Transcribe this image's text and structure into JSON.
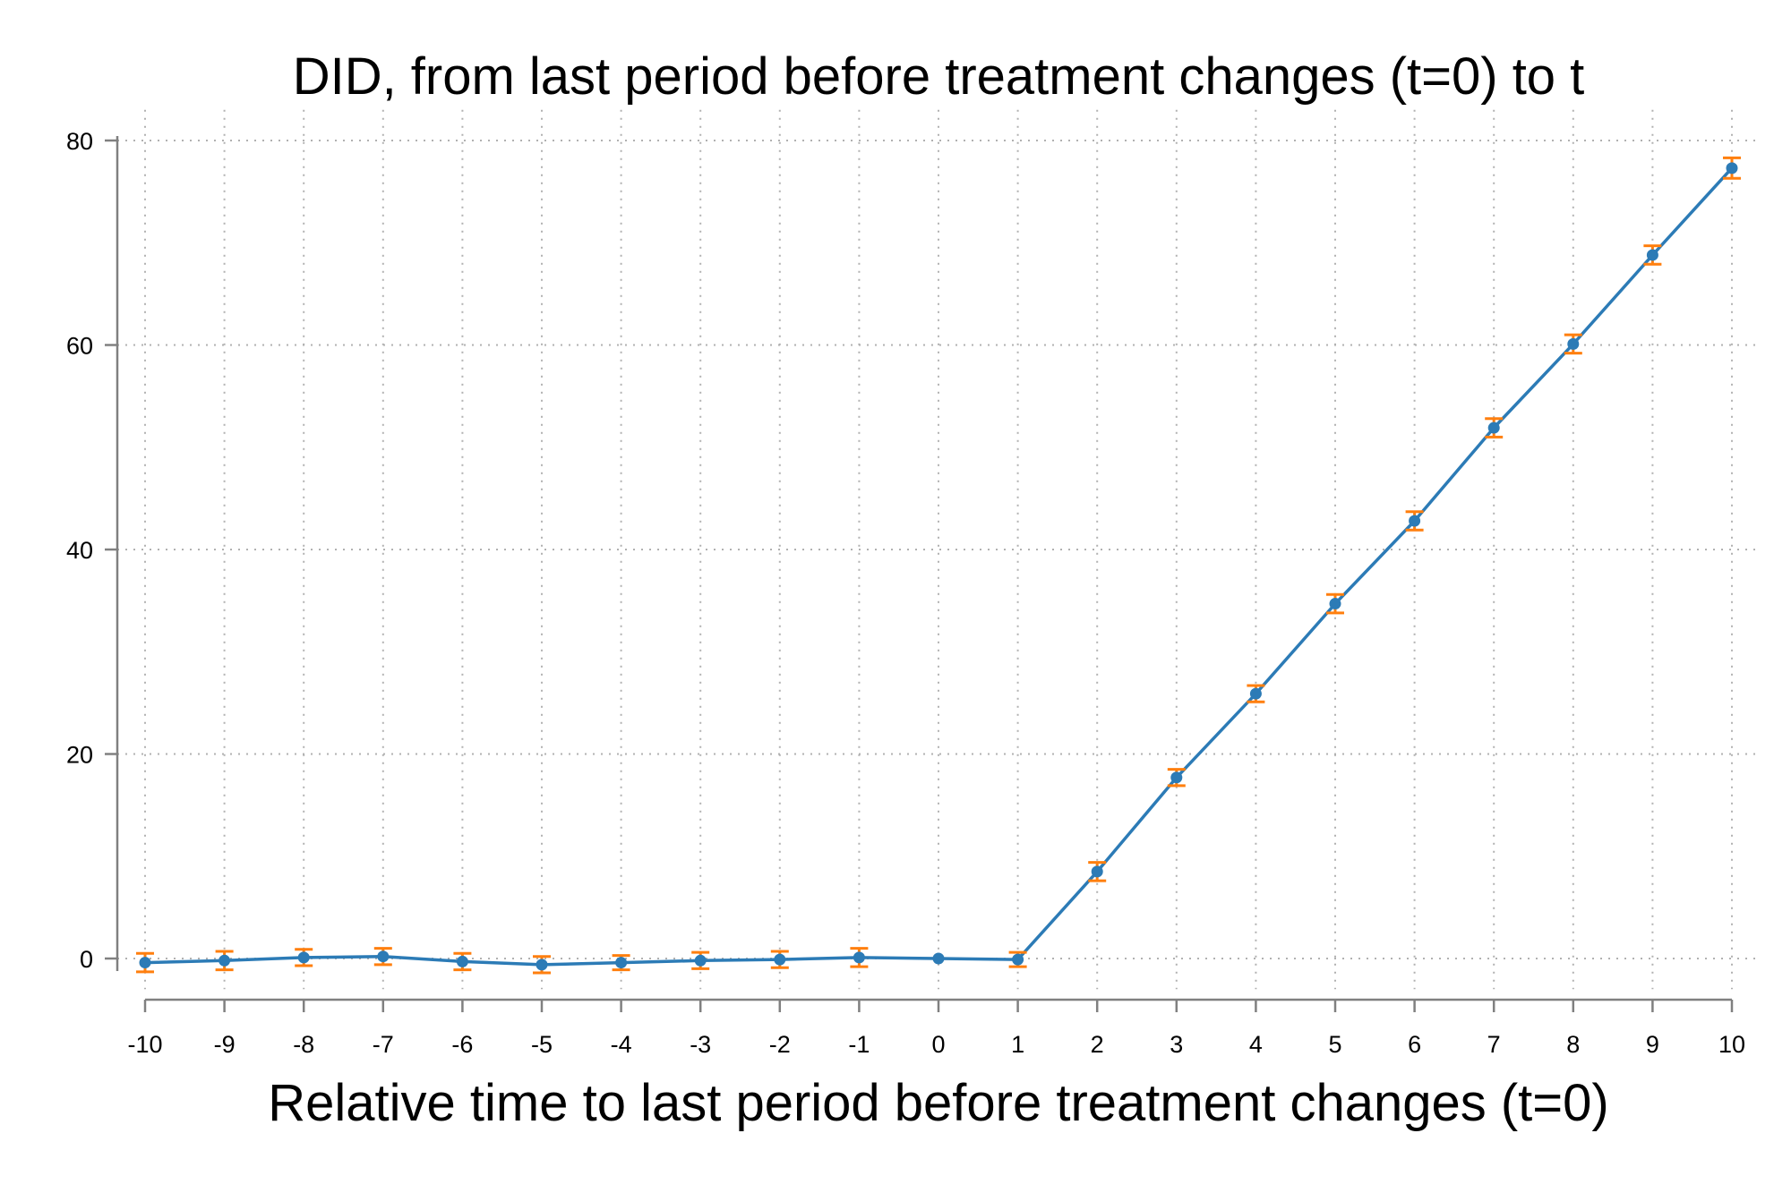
{
  "chart_data": {
    "type": "line",
    "title": "DID, from last period before treatment changes (t=0) to t",
    "xlabel": "Relative time to last period before treatment changes (t=0)",
    "ylabel": "",
    "x": [
      -10,
      -9,
      -8,
      -7,
      -6,
      -5,
      -4,
      -3,
      -2,
      -1,
      0,
      1,
      2,
      3,
      4,
      5,
      6,
      7,
      8,
      9,
      10
    ],
    "x_tick_labels": [
      "-10",
      "-9",
      "-8",
      "-7",
      "-6",
      "-5",
      "-4",
      "-3",
      "-2",
      "-1",
      "0",
      "1",
      "2",
      "3",
      "4",
      "5",
      "6",
      "7",
      "8",
      "9",
      "10"
    ],
    "y_ticks": [
      0,
      20,
      40,
      60,
      80
    ],
    "y_tick_labels": [
      "0",
      "20",
      "40",
      "60",
      "80"
    ],
    "xlim": [
      -10,
      10
    ],
    "ylim": [
      -3,
      83
    ],
    "grid": true,
    "series": [
      {
        "values": [
          -0.4,
          -0.2,
          0.1,
          0.2,
          -0.3,
          -0.6,
          -0.4,
          -0.2,
          -0.1,
          0.1,
          0.0,
          -0.1,
          8.5,
          17.7,
          25.9,
          34.7,
          42.8,
          51.9,
          60.1,
          68.8,
          77.3
        ],
        "ci_low": [
          -1.3,
          -1.1,
          -0.7,
          -0.6,
          -1.1,
          -1.4,
          -1.1,
          -1.0,
          -0.9,
          -0.8,
          0.0,
          -0.8,
          7.6,
          16.9,
          25.1,
          33.8,
          41.9,
          51.0,
          59.2,
          67.9,
          76.3
        ],
        "ci_high": [
          0.5,
          0.7,
          0.9,
          1.0,
          0.5,
          0.2,
          0.3,
          0.6,
          0.7,
          1.0,
          0.0,
          0.6,
          9.4,
          18.5,
          26.7,
          35.6,
          43.7,
          52.8,
          61.0,
          69.7,
          78.3
        ]
      }
    ],
    "colors": {
      "line": "#2c7bb6",
      "point": "#2c7bb6",
      "error_bar": "#ff7f0e",
      "axis": "#808080",
      "grid": "#b0b0b0"
    }
  }
}
